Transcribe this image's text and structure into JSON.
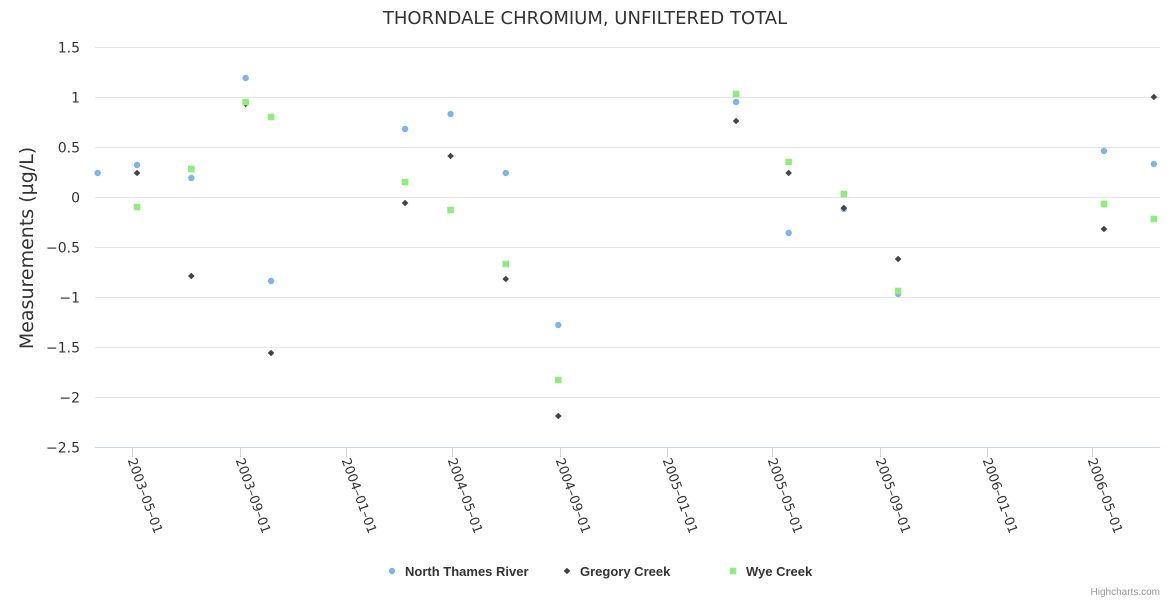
{
  "colors": {
    "north_thames": "#7cb5ec",
    "gregory": "#434348",
    "wye": "#90ed7d",
    "grid": "#e6e6e6",
    "axis": "#ccd6eb"
  },
  "credits": "Highcharts.com",
  "chart_data": {
    "type": "scatter",
    "title": "THORNDALE CHROMIUM, UNFILTERED TOTAL",
    "ylabel": "Measurements (µg/L)",
    "xlabel": "",
    "ylim": [
      -2.5,
      1.5
    ],
    "yticks": [
      -2.5,
      -2,
      -1.5,
      -1,
      -0.5,
      0,
      0.5,
      1,
      1.5
    ],
    "ytick_labels": [
      "−2.5",
      "−2",
      "−1.5",
      "−1",
      "−0.5",
      "0",
      "0.5",
      "1",
      "1.5"
    ],
    "xlim": [
      "2003-03-20",
      "2006-07-18"
    ],
    "xticks": [
      "2003-05-01",
      "2003-09-01",
      "2004-01-01",
      "2004-05-01",
      "2004-09-01",
      "2005-01-01",
      "2005-05-01",
      "2005-09-01",
      "2006-01-01",
      "2006-05-01"
    ],
    "grid": true,
    "legend_position": "bottom-center",
    "series": [
      {
        "name": "North Thames River",
        "marker": "circle",
        "points": [
          {
            "x": "2003-03-23",
            "y": 0.24
          },
          {
            "x": "2003-05-07",
            "y": 0.32
          },
          {
            "x": "2003-07-08",
            "y": 0.19
          },
          {
            "x": "2003-09-08",
            "y": 1.19
          },
          {
            "x": "2003-10-07",
            "y": -0.84
          },
          {
            "x": "2004-03-08",
            "y": 0.68
          },
          {
            "x": "2004-04-29",
            "y": 0.83
          },
          {
            "x": "2004-07-01",
            "y": 0.24
          },
          {
            "x": "2004-08-30",
            "y": -1.28
          },
          {
            "x": "2005-03-21",
            "y": 0.95
          },
          {
            "x": "2005-05-20",
            "y": -0.36
          },
          {
            "x": "2005-07-22",
            "y": -0.12
          },
          {
            "x": "2005-09-22",
            "y": -0.97
          },
          {
            "x": "2006-05-15",
            "y": 0.46
          },
          {
            "x": "2006-07-11",
            "y": 0.33
          }
        ]
      },
      {
        "name": "Gregory Creek",
        "marker": "diamond",
        "points": [
          {
            "x": "2003-05-07",
            "y": 0.24
          },
          {
            "x": "2003-07-08",
            "y": -0.79
          },
          {
            "x": "2003-09-08",
            "y": 0.93
          },
          {
            "x": "2003-10-07",
            "y": -1.56
          },
          {
            "x": "2004-03-08",
            "y": -0.06
          },
          {
            "x": "2004-04-29",
            "y": 0.41
          },
          {
            "x": "2004-07-01",
            "y": -0.82
          },
          {
            "x": "2004-08-30",
            "y": -2.19
          },
          {
            "x": "2005-03-21",
            "y": 0.76
          },
          {
            "x": "2005-05-20",
            "y": 0.24
          },
          {
            "x": "2005-07-22",
            "y": -0.11
          },
          {
            "x": "2005-09-22",
            "y": -0.62
          },
          {
            "x": "2006-05-15",
            "y": -0.32
          },
          {
            "x": "2006-07-11",
            "y": 1.0
          }
        ]
      },
      {
        "name": "Wye Creek",
        "marker": "square",
        "points": [
          {
            "x": "2003-05-07",
            "y": -0.1
          },
          {
            "x": "2003-07-08",
            "y": 0.28
          },
          {
            "x": "2003-09-08",
            "y": 0.95
          },
          {
            "x": "2003-10-07",
            "y": 0.8
          },
          {
            "x": "2004-03-08",
            "y": 0.15
          },
          {
            "x": "2004-04-29",
            "y": -0.13
          },
          {
            "x": "2004-07-01",
            "y": -0.67
          },
          {
            "x": "2004-08-30",
            "y": -1.83
          },
          {
            "x": "2005-03-21",
            "y": 1.03
          },
          {
            "x": "2005-05-20",
            "y": 0.35
          },
          {
            "x": "2005-07-22",
            "y": 0.03
          },
          {
            "x": "2005-09-22",
            "y": -0.94
          },
          {
            "x": "2006-05-15",
            "y": -0.07
          },
          {
            "x": "2006-07-11",
            "y": -0.22
          }
        ]
      }
    ]
  }
}
